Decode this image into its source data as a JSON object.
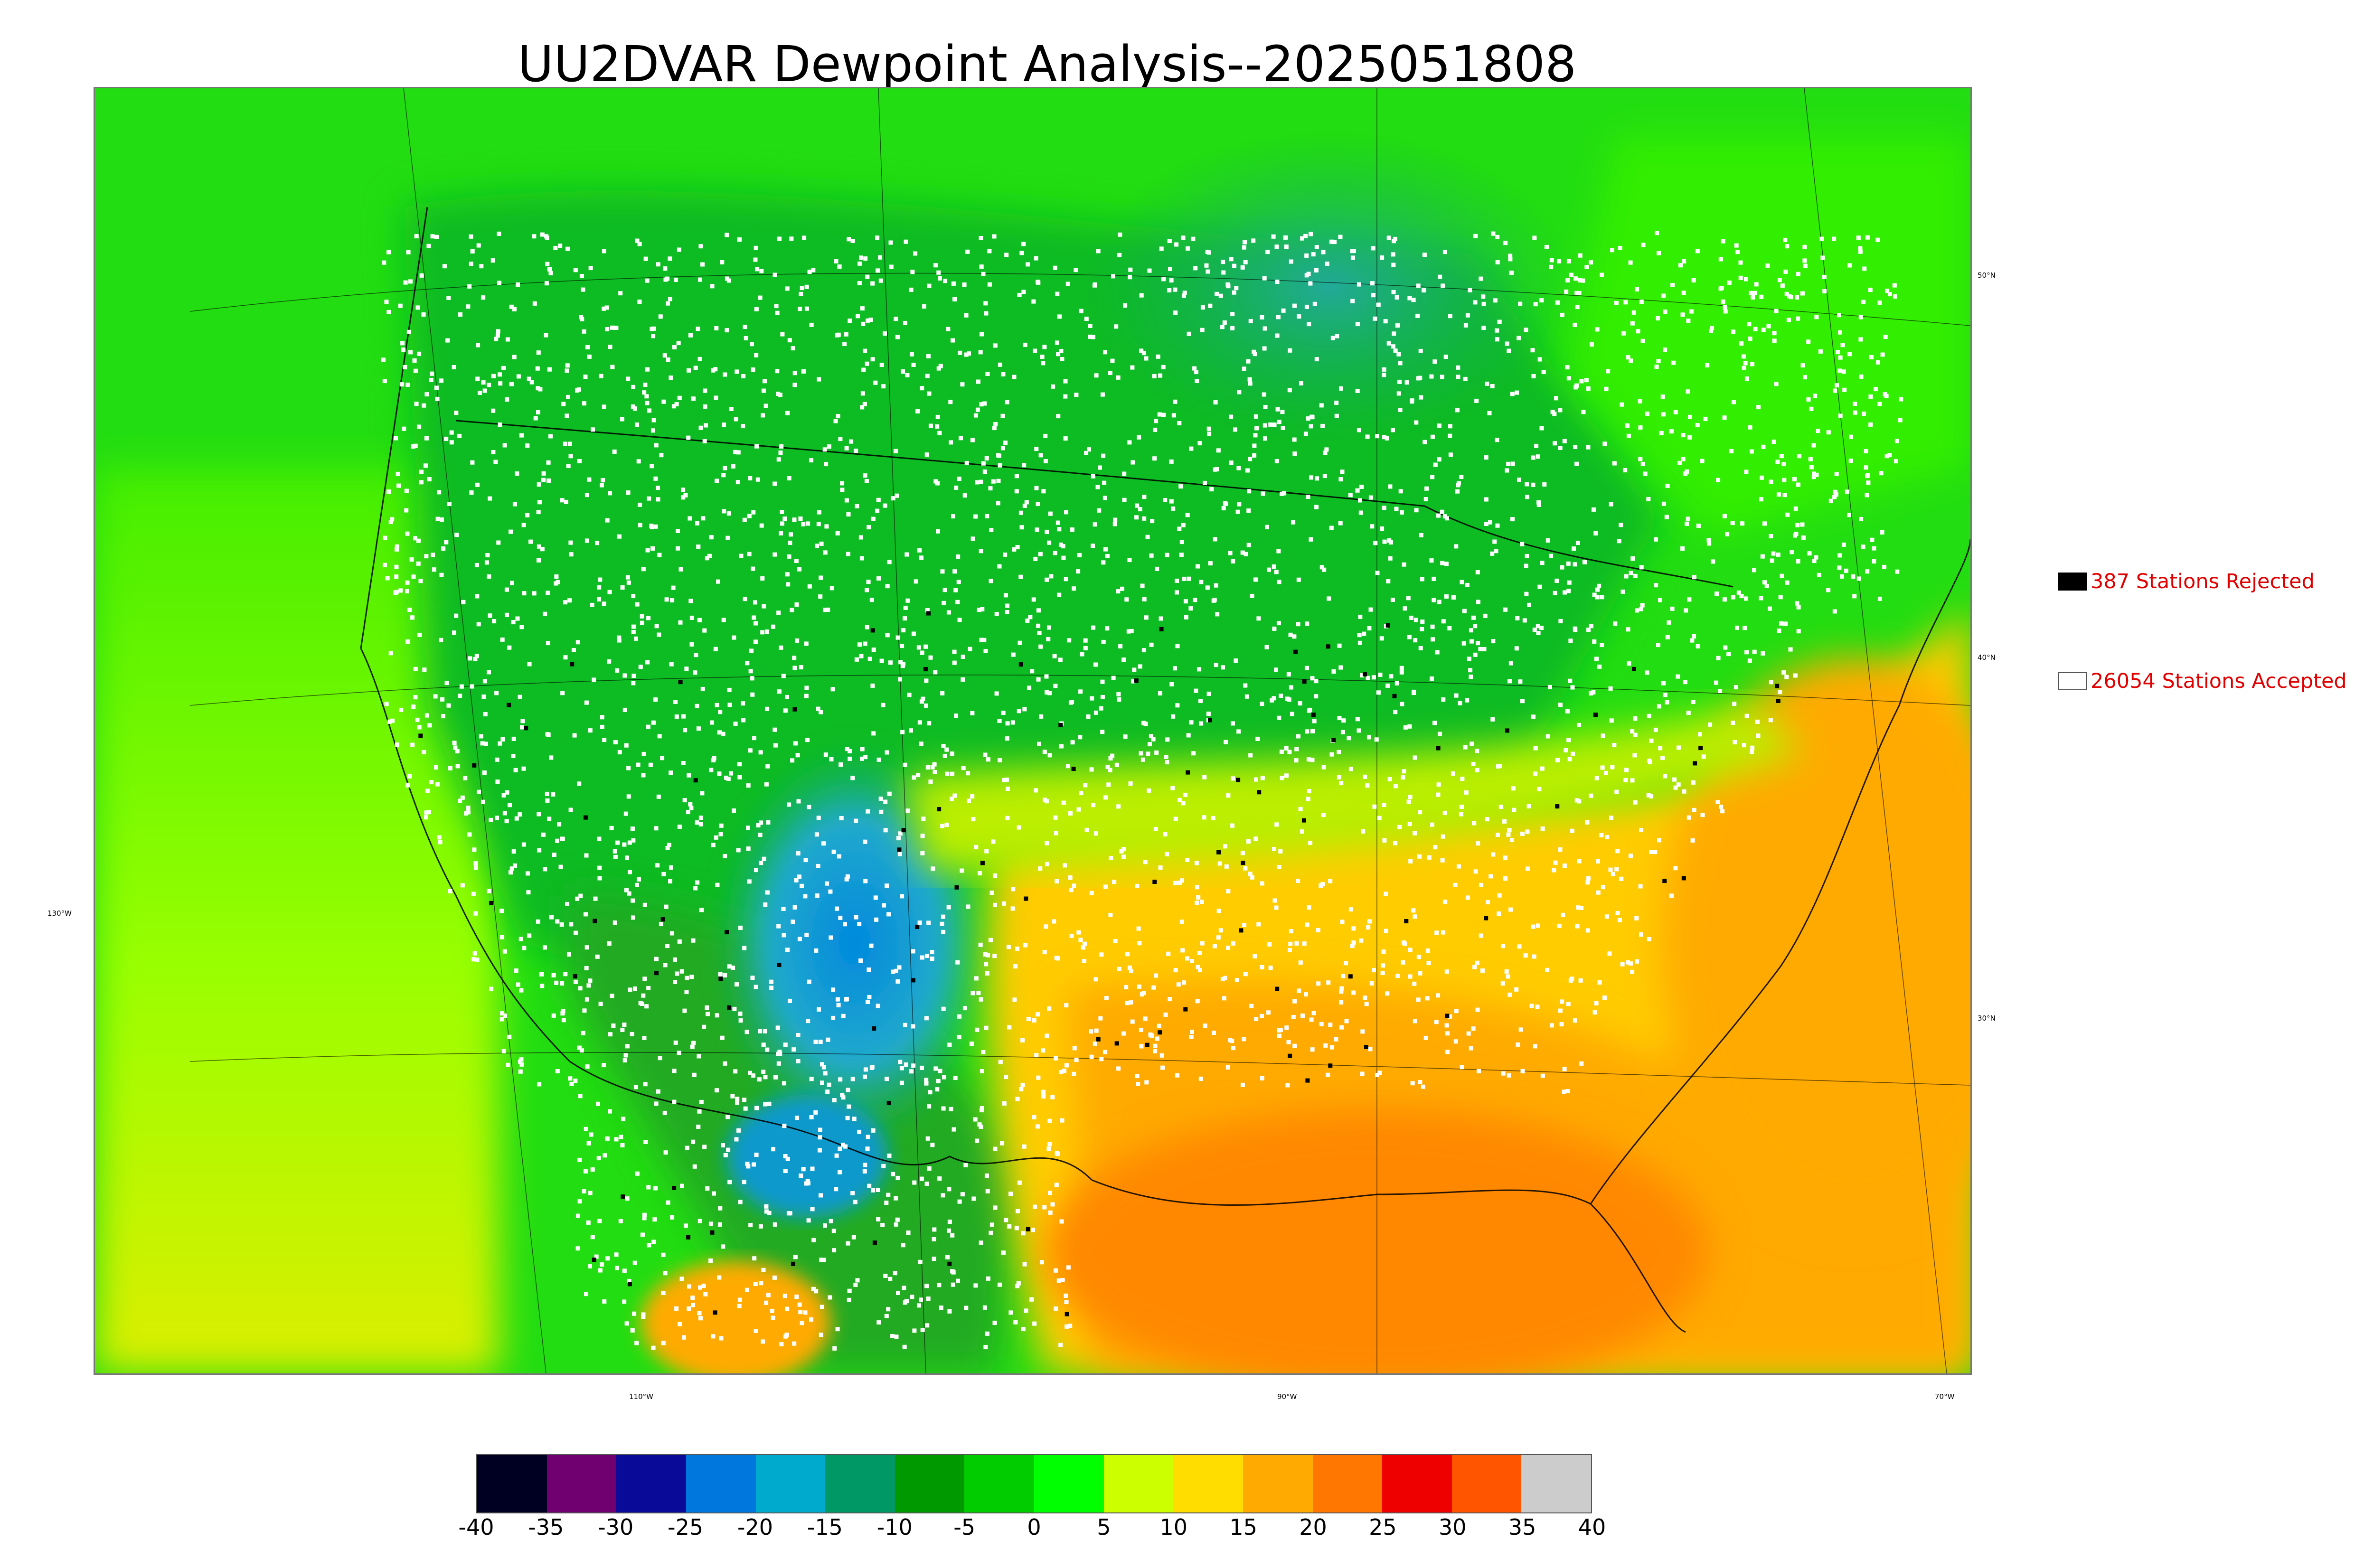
{
  "title": "UU2DVAR Dewpoint Analysis--2025051808",
  "legend": {
    "rejected": {
      "label": "387 Stations Rejected",
      "swatch_color": "#000000"
    },
    "accepted": {
      "label": "26054 Stations Accepted",
      "swatch_color": "#ffffff"
    }
  },
  "map": {
    "latitude_labels": [
      "50°N",
      "40°N",
      "30°N"
    ],
    "longitude_labels": [
      "130°W",
      "110°W",
      "90°W",
      "70°W"
    ]
  },
  "colorbar": {
    "colors": [
      "#000022",
      "#700070",
      "#0a0a99",
      "#0077dd",
      "#00aacc",
      "#009966",
      "#009900",
      "#00cc00",
      "#00ff00",
      "#ccff00",
      "#ffdd00",
      "#ffaa00",
      "#ff7700",
      "#ee0000",
      "#ff5500",
      "#cccccc"
    ],
    "tick_labels": [
      "-40",
      "-35",
      "-30",
      "-25",
      "-20",
      "-15",
      "-10",
      "-5",
      "0",
      "5",
      "10",
      "15",
      "20",
      "25",
      "30",
      "35",
      "40"
    ]
  },
  "colors": {
    "rejected_station": "#000000",
    "accepted_station": "#ffffff",
    "legend_text": "#e00000"
  }
}
